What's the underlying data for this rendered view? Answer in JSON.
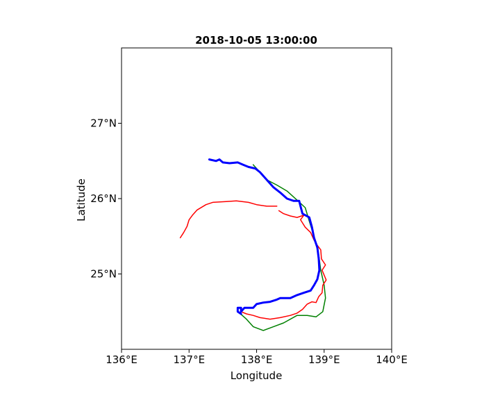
{
  "chart_data": {
    "type": "line",
    "title": "2018-10-05 13:00:00",
    "xlabel": "Longitude",
    "ylabel": "Latitude",
    "xlim": [
      136,
      140
    ],
    "ylim": [
      24,
      28
    ],
    "x_ticks": [
      {
        "value": 136,
        "label": "136°E"
      },
      {
        "value": 137,
        "label": "137°E"
      },
      {
        "value": 138,
        "label": "138°E"
      },
      {
        "value": 139,
        "label": "139°E"
      },
      {
        "value": 140,
        "label": "140°E"
      }
    ],
    "y_ticks": [
      {
        "value": 25,
        "label": "25°N"
      },
      {
        "value": 26,
        "label": "26°N"
      },
      {
        "value": 27,
        "label": "27°N"
      }
    ],
    "grid": false,
    "series": [
      {
        "color": "#008000",
        "width": 1.5,
        "points": [
          [
            137.95,
            26.45
          ],
          [
            138.05,
            26.35
          ],
          [
            138.15,
            26.25
          ],
          [
            138.3,
            26.18
          ],
          [
            138.45,
            26.1
          ],
          [
            138.6,
            25.98
          ],
          [
            138.72,
            25.88
          ],
          [
            138.78,
            25.7
          ],
          [
            138.85,
            25.5
          ],
          [
            138.92,
            25.25
          ],
          [
            138.95,
            25.05
          ],
          [
            139.0,
            24.85
          ],
          [
            139.02,
            24.68
          ],
          [
            138.98,
            24.5
          ],
          [
            138.88,
            24.43
          ],
          [
            138.75,
            24.45
          ],
          [
            138.6,
            24.45
          ],
          [
            138.4,
            24.35
          ],
          [
            138.25,
            24.3
          ],
          [
            138.1,
            24.25
          ],
          [
            137.95,
            24.3
          ],
          [
            137.85,
            24.4
          ],
          [
            137.75,
            24.48
          ]
        ]
      },
      {
        "color": "#ff0000",
        "width": 1.5,
        "points": [
          [
            136.87,
            25.48
          ],
          [
            136.92,
            25.55
          ],
          [
            136.97,
            25.63
          ],
          [
            137.0,
            25.72
          ],
          [
            137.05,
            25.78
          ],
          [
            137.12,
            25.85
          ],
          [
            137.25,
            25.92
          ],
          [
            137.35,
            25.95
          ],
          [
            137.55,
            25.96
          ],
          [
            137.7,
            25.97
          ],
          [
            137.88,
            25.95
          ],
          [
            138.0,
            25.92
          ],
          [
            138.15,
            25.9
          ],
          [
            138.3,
            25.9
          ]
        ]
      },
      {
        "color": "#ff0000",
        "width": 1.5,
        "points": [
          [
            138.33,
            25.84
          ],
          [
            138.4,
            25.8
          ],
          [
            138.5,
            25.77
          ],
          [
            138.6,
            25.75
          ],
          [
            138.7,
            25.78
          ],
          [
            138.65,
            25.72
          ],
          [
            138.72,
            25.62
          ],
          [
            138.8,
            25.55
          ],
          [
            138.85,
            25.45
          ],
          [
            138.9,
            25.38
          ],
          [
            138.95,
            25.32
          ],
          [
            138.96,
            25.2
          ],
          [
            139.02,
            25.12
          ],
          [
            138.97,
            25.05
          ],
          [
            139.03,
            24.92
          ],
          [
            138.98,
            24.85
          ],
          [
            138.97,
            24.75
          ],
          [
            138.92,
            24.7
          ],
          [
            138.88,
            24.62
          ],
          [
            138.82,
            24.63
          ],
          [
            138.75,
            24.6
          ],
          [
            138.68,
            24.53
          ],
          [
            138.6,
            24.48
          ],
          [
            138.5,
            24.45
          ],
          [
            138.35,
            24.42
          ],
          [
            138.2,
            24.4
          ],
          [
            138.05,
            24.42
          ],
          [
            137.95,
            24.45
          ],
          [
            137.85,
            24.47
          ],
          [
            137.77,
            24.5
          ]
        ]
      },
      {
        "color": "#0000ff",
        "width": 3,
        "points": [
          [
            137.3,
            26.52
          ],
          [
            137.4,
            26.5
          ],
          [
            137.45,
            26.52
          ],
          [
            137.5,
            26.48
          ],
          [
            137.6,
            26.47
          ],
          [
            137.72,
            26.48
          ],
          [
            137.8,
            26.45
          ],
          [
            137.88,
            26.42
          ],
          [
            137.98,
            26.4
          ],
          [
            138.05,
            26.35
          ],
          [
            138.15,
            26.25
          ],
          [
            138.25,
            26.15
          ],
          [
            138.35,
            26.08
          ],
          [
            138.45,
            26.0
          ],
          [
            138.55,
            25.97
          ],
          [
            138.63,
            25.97
          ],
          [
            138.65,
            25.9
          ],
          [
            138.68,
            25.8
          ],
          [
            138.78,
            25.75
          ],
          [
            138.82,
            25.62
          ],
          [
            138.85,
            25.48
          ],
          [
            138.9,
            25.35
          ],
          [
            138.92,
            25.2
          ],
          [
            138.93,
            25.05
          ],
          [
            138.9,
            24.93
          ],
          [
            138.85,
            24.85
          ],
          [
            138.8,
            24.78
          ],
          [
            138.7,
            24.75
          ],
          [
            138.6,
            24.72
          ],
          [
            138.5,
            24.68
          ],
          [
            138.35,
            24.68
          ],
          [
            138.3,
            24.66
          ],
          [
            138.2,
            24.63
          ],
          [
            138.1,
            24.62
          ],
          [
            138.0,
            24.6
          ],
          [
            137.95,
            24.55
          ],
          [
            137.88,
            24.55
          ],
          [
            137.82,
            24.55
          ],
          [
            137.77,
            24.5
          ],
          [
            137.77,
            24.55
          ],
          [
            137.72,
            24.55
          ],
          [
            137.72,
            24.5
          ],
          [
            137.77,
            24.47
          ]
        ]
      }
    ]
  }
}
